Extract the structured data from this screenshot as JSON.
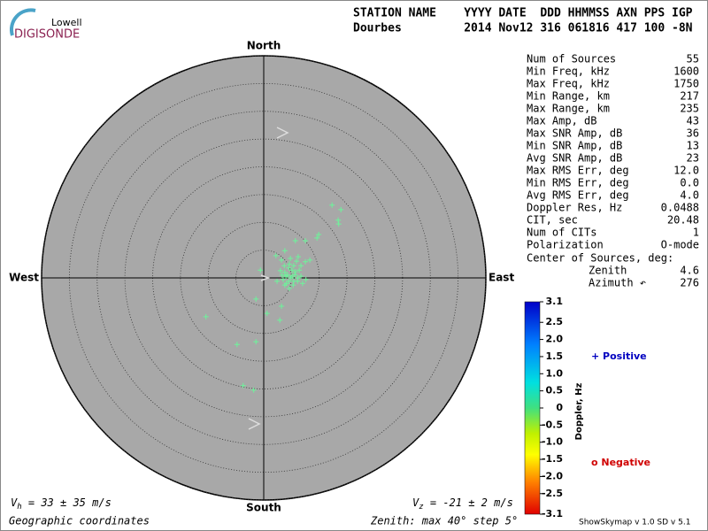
{
  "logo": {
    "top": "Lowell",
    "bottom": "DIGISONDE"
  },
  "header": {
    "labels": "STATION NAME    YYYY DATE  DDD HHMMSS AXN PPS IGP",
    "values": "Dourbes         2014 Nov12 316 061816 417 100 -8N"
  },
  "chart_data": {
    "type": "scatter",
    "directions": {
      "north": "North",
      "south": "South",
      "east": "East",
      "west": "West"
    },
    "rlim": [
      0,
      40
    ],
    "rticks": [
      5,
      10,
      15,
      20,
      25,
      30,
      35,
      40
    ],
    "color": "#6cf59a",
    "x": [
      12.3,
      13.9,
      13.4,
      13.5,
      9.9,
      9.6,
      7.5,
      5.7,
      3.8,
      2.2,
      3.2,
      4.8,
      6.2,
      7.5,
      8.3,
      5.4,
      6.7,
      4.5,
      5.1,
      5.7,
      6.4,
      3.8,
      4.3,
      5.1,
      6.1,
      7.6,
      3.5,
      4.5,
      5.4,
      3.8,
      5.3,
      -0.6,
      -1.4,
      3.2,
      0.6,
      2.9,
      -10.4,
      -4.8,
      -1.4,
      -3.7,
      -1.8,
      4.0,
      4.6,
      4.9,
      6.7,
      3.0,
      3.7,
      5.9,
      4.1,
      7.0,
      3.3,
      6.1,
      2.4,
      4.6,
      5.6
    ],
    "y": [
      13.1,
      12.3,
      10.4,
      9.7,
      7.8,
      7.2,
      6.7,
      6.7,
      4.9,
      4.0,
      3.2,
      3.5,
      3.8,
      2.9,
      3.2,
      2.2,
      2.2,
      1.8,
      1.4,
      1.1,
      1.4,
      1.0,
      0.5,
      0.3,
      0,
      -0.3,
      -0.3,
      -0.6,
      -0.6,
      -1.3,
      -1.3,
      1.4,
      -3.8,
      -5.1,
      -6.4,
      -7.6,
      -7.0,
      -12.0,
      -11.5,
      -19.4,
      -20.2,
      0.3,
      2.5,
      0,
      0.3,
      1.3,
      2.2,
      3.0,
      -1.0,
      -1.0,
      0.5,
      -0.6,
      -0.6,
      -1.9,
      0.6
    ],
    "colorbar": {
      "label": "Doppler, Hz",
      "ylim": [
        -3.1,
        3.1
      ],
      "yticks": [
        3.1,
        2.5,
        {
          "value": 2,
          "label": "2.0"
        },
        1.5,
        {
          "value": 1,
          "label": "1.0"
        },
        0.5,
        0,
        -0.5,
        {
          "value": -1,
          "label": "-1.0"
        },
        -1.5,
        {
          "value": -2,
          "label": "-2.0"
        },
        -2.5,
        -3.1
      ]
    },
    "legend": {
      "positive": "+ Positive",
      "negative": "o Negative"
    }
  },
  "stats": [
    [
      "Num of Sources",
      "55"
    ],
    [
      "Min Freq, kHz",
      "1600"
    ],
    [
      "Max Freq, kHz",
      "1750"
    ],
    [
      "Min Range, km",
      "217"
    ],
    [
      "Max Range, km",
      "235"
    ],
    [
      "Max Amp, dB",
      "43"
    ],
    [
      "Max SNR Amp, dB",
      "36"
    ],
    [
      "Min SNR Amp, dB",
      "13"
    ],
    [
      "Avg SNR Amp, dB",
      "23"
    ],
    [
      "Max RMS Err, deg",
      "12.0"
    ],
    [
      "Min RMS Err, deg",
      "0.0"
    ],
    [
      "Avg RMS Err, deg",
      "4.0"
    ],
    [
      "Doppler Res, Hz",
      "0.0488"
    ],
    [
      "CIT, sec",
      "20.48"
    ],
    [
      "Num of CITs",
      "1"
    ],
    [
      "Polarization",
      "O-mode"
    ]
  ],
  "center": {
    "title": "Center of Sources, deg:",
    "rows": [
      [
        "Zenith",
        "4.6"
      ],
      [
        "Azimuth ↶",
        "276"
      ]
    ]
  },
  "footer": {
    "vh_sym": "V",
    "vh_sub": "h",
    "vh_text": " = 33 ± 35 m/s",
    "vz_sym": "V",
    "vz_sub": "z",
    "vz_text": " = -21 ± 2 m/s",
    "coords": "Geographic coordinates",
    "zenith": "Zenith: max 40°  step 5°",
    "version": "ShowSkymap v 1.0  SD v 5.1"
  }
}
